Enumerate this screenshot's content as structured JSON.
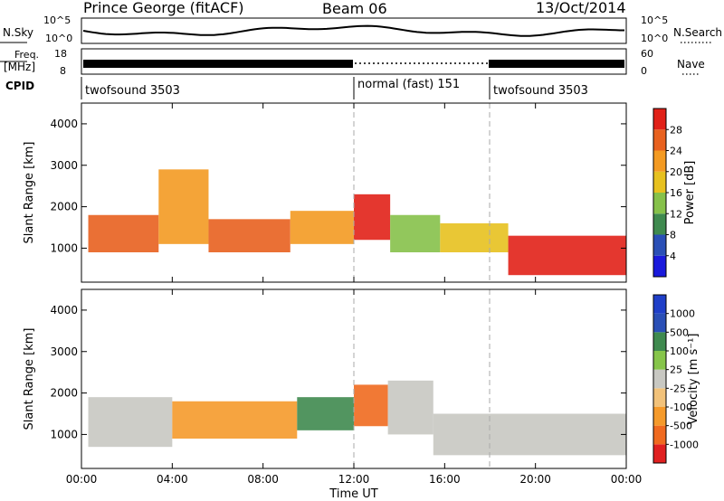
{
  "header": {
    "station": "Prince George (fitACF)",
    "beam": "Beam 06",
    "date": "13/Oct/2014"
  },
  "top_panel": {
    "left_label": "N.Sky",
    "right_label": "N.Search",
    "ticks": [
      "10^5",
      "10^0"
    ]
  },
  "freq_panel": {
    "left_label_1": "Freq.",
    "left_label_2": "[MHz]",
    "left_ticks": [
      "18",
      "8"
    ],
    "right_label": "Nave",
    "right_ticks": [
      "60",
      "0"
    ]
  },
  "cpid": {
    "label": "CPID",
    "segments": [
      {
        "name": "twofsound 3503"
      },
      {
        "name": "normal (fast) 151"
      },
      {
        "name": "twofsound 3503"
      }
    ]
  },
  "colors": {
    "power": [
      "#1a1adc",
      "#2a4fb6",
      "#3f8a4f",
      "#86c14a",
      "#e7c11f",
      "#f39a22",
      "#e8611f",
      "#e12118"
    ],
    "velocity": [
      "#e02020",
      "#f06a1f",
      "#f59a2b",
      "#f2c27a",
      "#c8c8c2",
      "#86c54a",
      "#3f8a4f",
      "#2a4fb6",
      "#1f3fc8"
    ]
  },
  "chart_data": [
    {
      "type": "heatmap",
      "title": "Power",
      "xlabel": "",
      "ylabel": "Slant Range [km]",
      "x_ticks": [
        "00:00",
        "04:00",
        "08:00",
        "12:00",
        "16:00",
        "20:00",
        "00:00"
      ],
      "y_ticks": [
        "1000",
        "2000",
        "3000",
        "4000"
      ],
      "ylim": [
        180,
        4500
      ],
      "colorbar": {
        "label": "Power [dB]",
        "ticks": [
          "4",
          "8",
          "12",
          "16",
          "20",
          "24",
          "28"
        ]
      },
      "bands": [
        {
          "t0": 0.3,
          "t1": 3.4,
          "r0": 900,
          "r1": 1800,
          "level": 6
        },
        {
          "t0": 3.4,
          "t1": 5.6,
          "r0": 1100,
          "r1": 2900,
          "level": 5
        },
        {
          "t0": 5.6,
          "t1": 9.2,
          "r0": 900,
          "r1": 1700,
          "level": 6
        },
        {
          "t0": 9.2,
          "t1": 12.0,
          "r0": 1100,
          "r1": 1900,
          "level": 5
        },
        {
          "t0": 12.0,
          "t1": 13.6,
          "r0": 1200,
          "r1": 2300,
          "level": 7
        },
        {
          "t0": 13.6,
          "t1": 15.8,
          "r0": 900,
          "r1": 1800,
          "level": 3
        },
        {
          "t0": 15.8,
          "t1": 18.8,
          "r0": 900,
          "r1": 1600,
          "level": 4
        },
        {
          "t0": 18.8,
          "t1": 24.0,
          "r0": 350,
          "r1": 1300,
          "level": 7
        }
      ]
    },
    {
      "type": "heatmap",
      "title": "Velocity",
      "xlabel": "Time UT",
      "ylabel": "Slant Range [km]",
      "x_ticks": [
        "00:00",
        "04:00",
        "08:00",
        "12:00",
        "16:00",
        "20:00",
        "00:00"
      ],
      "y_ticks": [
        "1000",
        "2000",
        "3000",
        "4000"
      ],
      "ylim": [
        180,
        4500
      ],
      "colorbar": {
        "label": "Velocity [m s⁻¹]",
        "ticks": [
          "-1000",
          "-500",
          "-100",
          "-25",
          "25",
          "100",
          "500",
          "1000"
        ]
      },
      "bands": [
        {
          "t0": 0.3,
          "t1": 4.0,
          "r0": 700,
          "r1": 1900,
          "level": 4
        },
        {
          "t0": 4.0,
          "t1": 9.5,
          "r0": 900,
          "r1": 1800,
          "level": 2
        },
        {
          "t0": 9.5,
          "t1": 12.0,
          "r0": 1100,
          "r1": 1900,
          "level": 6
        },
        {
          "t0": 12.0,
          "t1": 13.5,
          "r0": 1200,
          "r1": 2200,
          "level": 1
        },
        {
          "t0": 13.5,
          "t1": 15.5,
          "r0": 1000,
          "r1": 2300,
          "level": 4
        },
        {
          "t0": 15.5,
          "t1": 24.0,
          "r0": 500,
          "r1": 1500,
          "level": 4
        }
      ]
    }
  ]
}
